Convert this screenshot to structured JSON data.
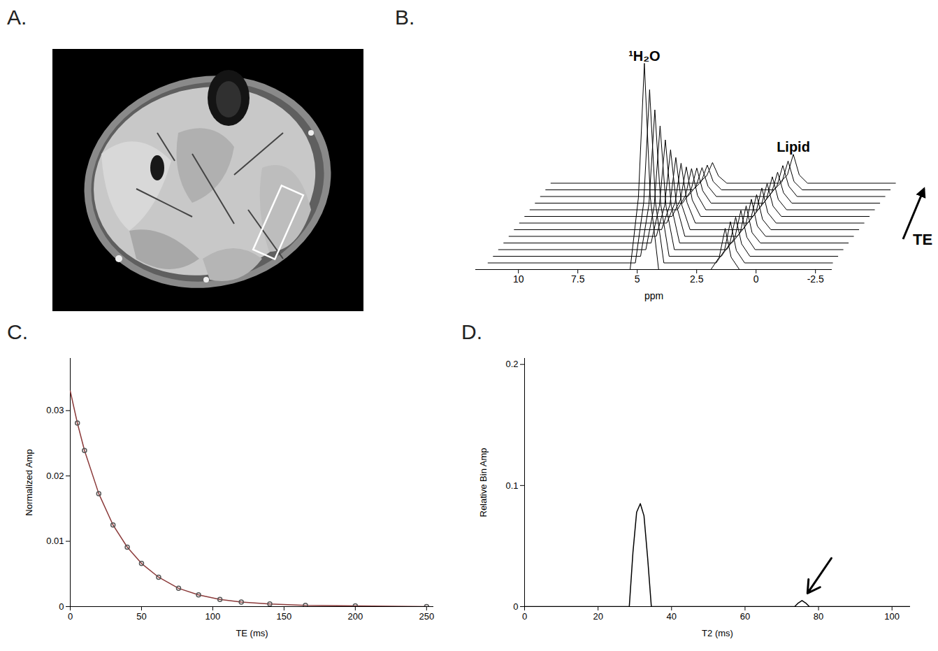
{
  "chart_data": [
    {
      "type": "image",
      "panel": "A."
    },
    {
      "type": "line",
      "panel": "B.",
      "xlabel": "ppm",
      "x": [
        11.5,
        5.3,
        4.95,
        4.7,
        4.45,
        4.1,
        1.9,
        1.55,
        1.3,
        1.05,
        0.7,
        -3.0
      ],
      "series": [
        {
          "color": "#000000",
          "values": [
            0,
            0,
            0.35,
            1.0,
            0.35,
            0,
            0,
            0.06,
            0.2,
            0.06,
            0,
            0
          ]
        },
        {
          "color": "#000000",
          "values": [
            0,
            0,
            0.29,
            0.84,
            0.29,
            0,
            0,
            0.06,
            0.2,
            0.06,
            0,
            0
          ]
        },
        {
          "color": "#000000",
          "values": [
            0,
            0,
            0.25,
            0.71,
            0.25,
            0,
            0,
            0.06,
            0.19,
            0.06,
            0,
            0
          ]
        },
        {
          "color": "#000000",
          "values": [
            0,
            0,
            0.21,
            0.6,
            0.21,
            0,
            0,
            0.06,
            0.19,
            0.06,
            0,
            0
          ]
        },
        {
          "color": "#000000",
          "values": [
            0,
            0,
            0.18,
            0.5,
            0.18,
            0,
            0,
            0.05,
            0.18,
            0.05,
            0,
            0
          ]
        },
        {
          "color": "#000000",
          "values": [
            0,
            0,
            0.15,
            0.42,
            0.15,
            0,
            0,
            0.05,
            0.18,
            0.05,
            0,
            0
          ]
        },
        {
          "color": "#000000",
          "values": [
            0,
            0,
            0.12,
            0.35,
            0.12,
            0,
            0,
            0.05,
            0.17,
            0.05,
            0,
            0
          ]
        },
        {
          "color": "#000000",
          "values": [
            0,
            0,
            0.1,
            0.29,
            0.1,
            0,
            0,
            0.05,
            0.17,
            0.05,
            0,
            0
          ]
        },
        {
          "color": "#000000",
          "values": [
            0,
            0,
            0.08,
            0.24,
            0.08,
            0,
            0,
            0.05,
            0.16,
            0.05,
            0,
            0
          ]
        },
        {
          "color": "#000000",
          "values": [
            0,
            0,
            0.07,
            0.2,
            0.07,
            0,
            0,
            0.05,
            0.16,
            0.05,
            0,
            0
          ]
        },
        {
          "color": "#000000",
          "values": [
            0,
            0,
            0.06,
            0.17,
            0.06,
            0,
            0,
            0.05,
            0.15,
            0.05,
            0,
            0
          ]
        },
        {
          "color": "#000000",
          "values": [
            0,
            0,
            0.05,
            0.14,
            0.05,
            0,
            0,
            0.05,
            0.15,
            0.05,
            0,
            0
          ]
        },
        {
          "color": "#000000",
          "values": [
            0,
            0,
            0.04,
            0.12,
            0.04,
            0,
            0,
            0.04,
            0.14,
            0.04,
            0,
            0
          ]
        },
        {
          "color": "#000000",
          "values": [
            0,
            0,
            0.035,
            0.1,
            0.035,
            0,
            0,
            0.04,
            0.14,
            0.04,
            0,
            0
          ]
        }
      ],
      "xlim": [
        11.8,
        -3.2
      ],
      "xticks": [
        10,
        7.5,
        5,
        2.5,
        0,
        -2.5
      ],
      "ylim": [
        0,
        1
      ],
      "tick_labels": "x",
      "annotations": [
        {
          "text": "¹H₂O",
          "x": 4.7
        },
        {
          "text": "Lipid",
          "x": 1.3
        },
        {
          "text": "TE"
        }
      ]
    },
    {
      "type": "line",
      "panel": "C.",
      "xlabel": "TE (ms)",
      "ylabel": "Normalized Amp",
      "xlim": [
        0,
        255
      ],
      "ylim": [
        0,
        0.038
      ],
      "xticks": [
        0,
        50,
        100,
        150,
        200,
        250
      ],
      "yticks": [
        0,
        0.01,
        0.02,
        0.03
      ],
      "series": [
        {
          "type": "line",
          "color": "#8b3a3a",
          "x": [
            0,
            5,
            10,
            20,
            30,
            40,
            50,
            62,
            76,
            90,
            105,
            120,
            140,
            165,
            200,
            250
          ],
          "values": [
            0.033,
            0.0281,
            0.0239,
            0.0173,
            0.0125,
            0.0091,
            0.0066,
            0.0045,
            0.0028,
            0.0018,
            0.0011,
            0.0007,
            0.0004,
            0.0002,
            0.0001,
            0
          ]
        },
        {
          "type": "scatter",
          "marker": "circle",
          "color": "#555555",
          "x": [
            5,
            10,
            20,
            30,
            40,
            50,
            62,
            76,
            90,
            105,
            120,
            140,
            165,
            200,
            250
          ],
          "values": [
            0.0281,
            0.0239,
            0.0173,
            0.0125,
            0.0091,
            0.0066,
            0.0045,
            0.0028,
            0.0018,
            0.0011,
            0.0007,
            0.0004,
            0.0002,
            0.0001,
            0
          ]
        }
      ]
    },
    {
      "type": "line",
      "panel": "D.",
      "xlabel": "T2 (ms)",
      "ylabel": "Relative Bin Amp",
      "xlim": [
        0,
        105
      ],
      "ylim": [
        0,
        0.205
      ],
      "xticks": [
        0,
        20,
        40,
        60,
        80,
        100
      ],
      "yticks": [
        0,
        0.1,
        0.2
      ],
      "x": [
        0,
        28.5,
        29.5,
        30.5,
        31.5,
        32.5,
        33.5,
        34.5,
        73.5,
        74.5,
        75.5,
        76.5,
        77.5,
        105
      ],
      "values": [
        0,
        0,
        0.045,
        0.078,
        0.085,
        0.075,
        0.04,
        0,
        0,
        0.003,
        0.005,
        0.003,
        0,
        0
      ],
      "color": "#000000"
    }
  ]
}
